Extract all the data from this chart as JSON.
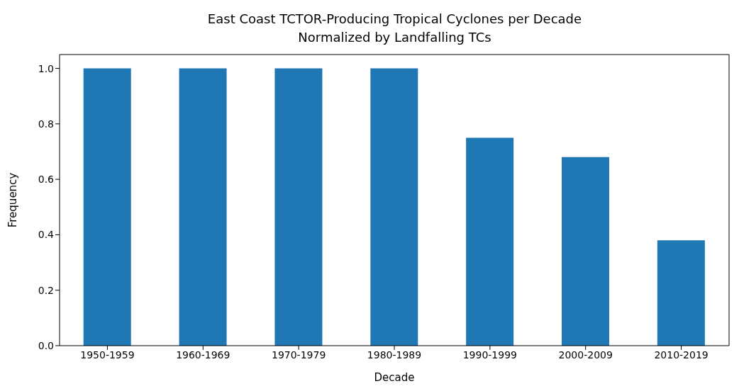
{
  "chart_data": {
    "type": "bar",
    "title": "East Coast TCTOR-Producing Tropical Cyclones per Decade\nNormalized by Landfalling TCs",
    "xlabel": "Decade",
    "ylabel": "Frequency",
    "categories": [
      "1950-1959",
      "1960-1969",
      "1970-1979",
      "1980-1989",
      "1990-1999",
      "2000-2009",
      "2010-2019"
    ],
    "values": [
      1.0,
      1.0,
      1.0,
      1.0,
      0.75,
      0.68,
      0.38
    ],
    "color": "#1f77b4",
    "ylim": [
      0,
      1.05
    ],
    "yticks": [
      {
        "value": 0,
        "label": "0.0"
      },
      {
        "value": 0.2,
        "label": "0.2"
      },
      {
        "value": 0.4,
        "label": "0.4"
      },
      {
        "value": 0.6,
        "label": "0.6"
      },
      {
        "value": 0.8,
        "label": "0.8"
      },
      {
        "value": 1.0,
        "label": "1.0"
      }
    ],
    "grid": false
  }
}
